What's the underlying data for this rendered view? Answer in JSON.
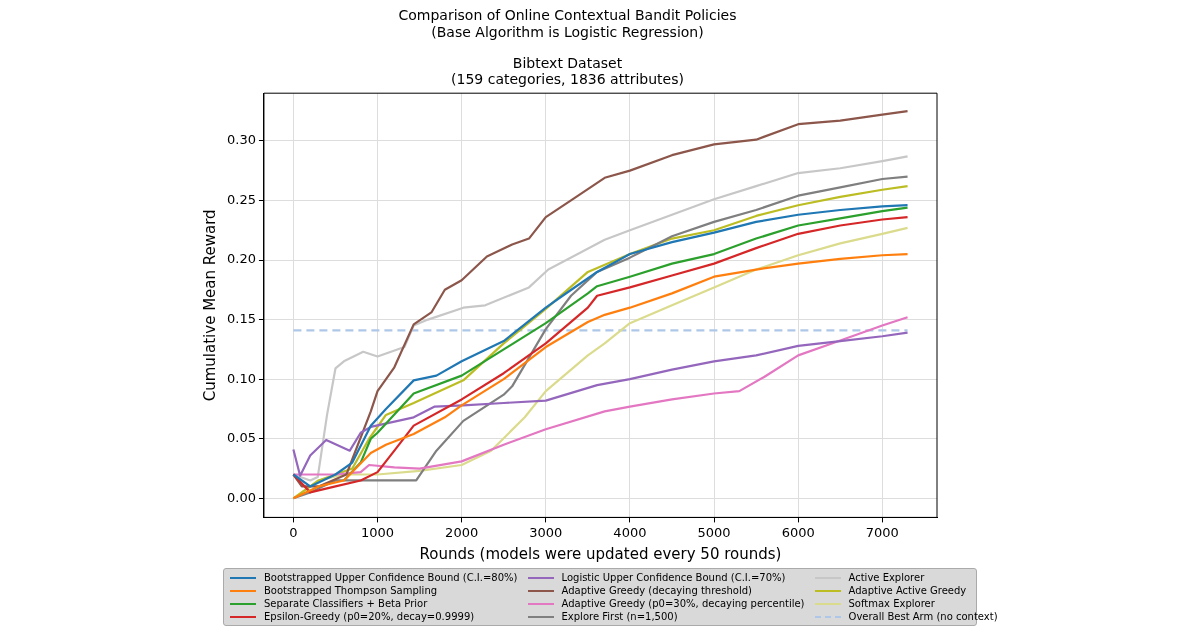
{
  "chart_data": {
    "type": "line",
    "title": "Comparison of Online Contextual Bandit Policies\n(Base Algorithm is Logistic Regression)",
    "subtitle": "Bibtext Dataset\n(159 categories, 1836 attributes)",
    "xlabel": "Rounds (models were updated every 50 rounds)",
    "ylabel": "Cumulative Mean Reward",
    "xlim": [
      -350,
      7650
    ],
    "ylim": [
      -0.016,
      0.34
    ],
    "xticks": [
      0,
      1000,
      2000,
      3000,
      4000,
      5000,
      6000,
      7000
    ],
    "yticks": [
      {
        "value": 0,
        "label": "0.00"
      },
      {
        "value": 0.05,
        "label": "0.05"
      },
      {
        "value": 0.1,
        "label": "0.10"
      },
      {
        "value": 0.15,
        "label": "0.15"
      },
      {
        "value": 0.2,
        "label": "0.20"
      },
      {
        "value": 0.25,
        "label": "0.25"
      },
      {
        "value": 0.3,
        "label": "0.30"
      }
    ],
    "grid": true,
    "legend": "bottom",
    "marker": "none",
    "line_style": "solid",
    "series": [
      {
        "name": "Bootstrapped Upper Confidence Bound (C.I.=80%)",
        "color": "#1f77b4",
        "x": [
          0,
          200,
          500,
          700,
          920,
          1100,
          1430,
          1700,
          2000,
          2500,
          3000,
          3200,
          3610,
          4000,
          4500,
          5000,
          5500,
          6000,
          6500,
          7000,
          7300
        ],
        "values": [
          0.02,
          0.01,
          0.02,
          0.03,
          0.061,
          0.075,
          0.099,
          0.103,
          0.115,
          0.132,
          0.16,
          0.17,
          0.19,
          0.205,
          0.215,
          0.223,
          0.232,
          0.238,
          0.242,
          0.245,
          0.246
        ]
      },
      {
        "name": "Bootstrapped Thompson Sampling",
        "color": "#ff7f0e",
        "x": [
          0,
          300,
          600,
          920,
          1100,
          1430,
          1800,
          2000,
          2500,
          3000,
          3500,
          3700,
          4000,
          4500,
          5000,
          5500,
          6000,
          6500,
          7000,
          7300
        ],
        "values": [
          0,
          0.01,
          0.015,
          0.038,
          0.045,
          0.054,
          0.068,
          0.078,
          0.1,
          0.127,
          0.148,
          0.154,
          0.16,
          0.172,
          0.186,
          0.192,
          0.197,
          0.201,
          0.204,
          0.205
        ]
      },
      {
        "name": "Separate Classifiers + Beta Prior",
        "color": "#2ca02c",
        "x": [
          600,
          800,
          920,
          1000,
          1430,
          2000,
          2500,
          3000,
          3500,
          3610,
          4000,
          4500,
          5000,
          5500,
          6000,
          6500,
          7000,
          7300
        ],
        "values": [
          0.015,
          0.03,
          0.05,
          0.055,
          0.088,
          0.103,
          0.125,
          0.147,
          0.172,
          0.178,
          0.186,
          0.197,
          0.205,
          0.218,
          0.229,
          0.235,
          0.241,
          0.244
        ]
      },
      {
        "name": "Epsilon-Greedy (p0=20%, decay=0.9999)",
        "color": "#d62728",
        "x": [
          0,
          200,
          500,
          800,
          1000,
          1200,
          1430,
          2000,
          2500,
          3000,
          3500,
          3610,
          4000,
          4500,
          5000,
          5500,
          6000,
          6500,
          7000,
          7300
        ],
        "values": [
          0.02,
          0.005,
          0.01,
          0.015,
          0.022,
          0.04,
          0.061,
          0.083,
          0.105,
          0.13,
          0.16,
          0.17,
          0.177,
          0.187,
          0.197,
          0.21,
          0.222,
          0.229,
          0.234,
          0.236
        ]
      },
      {
        "name": "Logistic Upper Confidence Bound (C.I.=70%)",
        "color": "#9467bd",
        "x": [
          0,
          80,
          200,
          390,
          670,
          800,
          920,
          1430,
          1680,
          2020,
          2500,
          3000,
          3610,
          4000,
          4500,
          5000,
          5500,
          6000,
          6500,
          7000,
          7300
        ],
        "values": [
          0.041,
          0.019,
          0.036,
          0.049,
          0.04,
          0.055,
          0.06,
          0.068,
          0.077,
          0.078,
          0.08,
          0.082,
          0.095,
          0.1,
          0.108,
          0.115,
          0.12,
          0.128,
          0.132,
          0.136,
          0.139
        ]
      },
      {
        "name": "Adaptive Greedy (decaying threshold)",
        "color": "#8c564b",
        "x": [
          0,
          100,
          300,
          630,
          920,
          1000,
          1200,
          1430,
          1640,
          1800,
          2000,
          2300,
          2600,
          2800,
          3000,
          3300,
          3700,
          4000,
          4500,
          5000,
          5500,
          6000,
          6500,
          7000,
          7300
        ],
        "values": [
          0.02,
          0.01,
          0.01,
          0.02,
          0.073,
          0.09,
          0.11,
          0.146,
          0.156,
          0.175,
          0.183,
          0.203,
          0.213,
          0.218,
          0.236,
          0.25,
          0.269,
          0.275,
          0.288,
          0.297,
          0.301,
          0.314,
          0.317,
          0.322,
          0.325
        ]
      },
      {
        "name": "Adaptive Greedy (p0=30%, decaying percentile)",
        "color": "#e377c2",
        "x": [
          0,
          500,
          800,
          900,
          1200,
          1500,
          2000,
          2500,
          3000,
          3700,
          4000,
          4500,
          5000,
          5300,
          5600,
          6000,
          6400,
          7000,
          7300
        ],
        "values": [
          0.02,
          0.02,
          0.022,
          0.028,
          0.026,
          0.025,
          0.031,
          0.045,
          0.058,
          0.073,
          0.077,
          0.083,
          0.088,
          0.09,
          0.102,
          0.12,
          0.13,
          0.145,
          0.152
        ]
      },
      {
        "name": "Explore First (n=1,500)",
        "color": "#7f7f7f",
        "x": [
          0,
          200,
          500,
          800,
          1000,
          1460,
          1700,
          2020,
          2500,
          2600,
          3000,
          3300,
          3610,
          4000,
          4500,
          5000,
          5500,
          6000,
          6500,
          7000,
          7300
        ],
        "values": [
          0,
          0.005,
          0.015,
          0.015,
          0.015,
          0.015,
          0.04,
          0.065,
          0.087,
          0.094,
          0.142,
          0.17,
          0.19,
          0.202,
          0.22,
          0.232,
          0.242,
          0.254,
          0.261,
          0.268,
          0.27
        ]
      },
      {
        "name": "Active Explorer",
        "color": "#c7c7c7",
        "x": [
          0,
          200,
          290,
          400,
          500,
          600,
          830,
          1000,
          1320,
          1430,
          1600,
          2020,
          2280,
          2800,
          3030,
          3700,
          4000,
          4500,
          5000,
          5500,
          6000,
          6500,
          7000,
          7300
        ],
        "values": [
          0.02,
          0.015,
          0.018,
          0.07,
          0.109,
          0.115,
          0.123,
          0.119,
          0.127,
          0.145,
          0.15,
          0.16,
          0.162,
          0.177,
          0.192,
          0.217,
          0.225,
          0.238,
          0.251,
          0.262,
          0.273,
          0.277,
          0.283,
          0.287
        ]
      },
      {
        "name": "Adaptive Active Greedy",
        "color": "#bcbd22",
        "x": [
          0,
          300,
          500,
          700,
          900,
          1100,
          1430,
          2020,
          2500,
          3000,
          3500,
          4000,
          4500,
          5000,
          5500,
          6000,
          6500,
          7000,
          7300
        ],
        "values": [
          0,
          0.015,
          0.02,
          0.025,
          0.05,
          0.07,
          0.08,
          0.099,
          0.13,
          0.159,
          0.19,
          0.205,
          0.218,
          0.225,
          0.237,
          0.246,
          0.253,
          0.259,
          0.262
        ]
      },
      {
        "name": "Softmax Explorer",
        "color": "#dbdb8d",
        "x": [
          0,
          300,
          600,
          1000,
          1500,
          2000,
          2350,
          2750,
          3000,
          3500,
          3700,
          4000,
          4500,
          5000,
          5500,
          6000,
          6500,
          7000,
          7300
        ],
        "values": [
          0,
          0.015,
          0.02,
          0.02,
          0.023,
          0.028,
          0.04,
          0.068,
          0.09,
          0.12,
          0.13,
          0.147,
          0.162,
          0.177,
          0.192,
          0.204,
          0.214,
          0.222,
          0.227
        ]
      },
      {
        "name": "Overall Best Arm (no context)",
        "color": "#aec7e8",
        "line_style": "dashed",
        "x": [
          0,
          7300
        ],
        "values": [
          0.141,
          0.141
        ]
      }
    ]
  }
}
